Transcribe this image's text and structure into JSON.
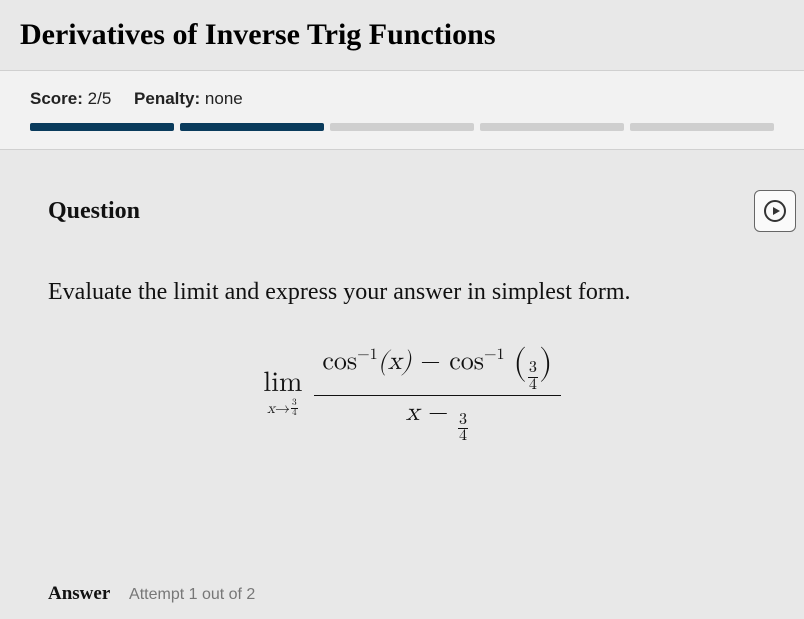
{
  "title": "Derivatives of Inverse Trig Functions",
  "score_panel": {
    "score_label": "Score:",
    "score_value": "2/5",
    "penalty_label": "Penalty:",
    "penalty_value": "none",
    "progress": {
      "segments": 5,
      "completed": 2,
      "completed_color": "#0a3b5c",
      "pending_color": "#cfcfcf"
    }
  },
  "question": {
    "heading": "Question",
    "prompt": "Evaluate the limit and express your answer in simplest form.",
    "math": {
      "lim_word": "lim",
      "approach_var": "x",
      "arrow": "→",
      "approach_num": "3",
      "approach_den": "4",
      "num_fn1": "cos",
      "num_exp1": "−1",
      "num_arg1": "(x)",
      "minus": "−",
      "num_fn2": "cos",
      "num_exp2": "−1",
      "paren_open": "(",
      "inner_num": "3",
      "inner_den": "4",
      "paren_close": ")",
      "den_var": "x",
      "den_num": "3",
      "den_den": "4"
    }
  },
  "answer": {
    "label": "Answer",
    "attempt": "Attempt 1 out of 2"
  },
  "colors": {
    "background": "#e8e8e8",
    "panel_bg": "#f2f2f2",
    "text": "#111111"
  }
}
